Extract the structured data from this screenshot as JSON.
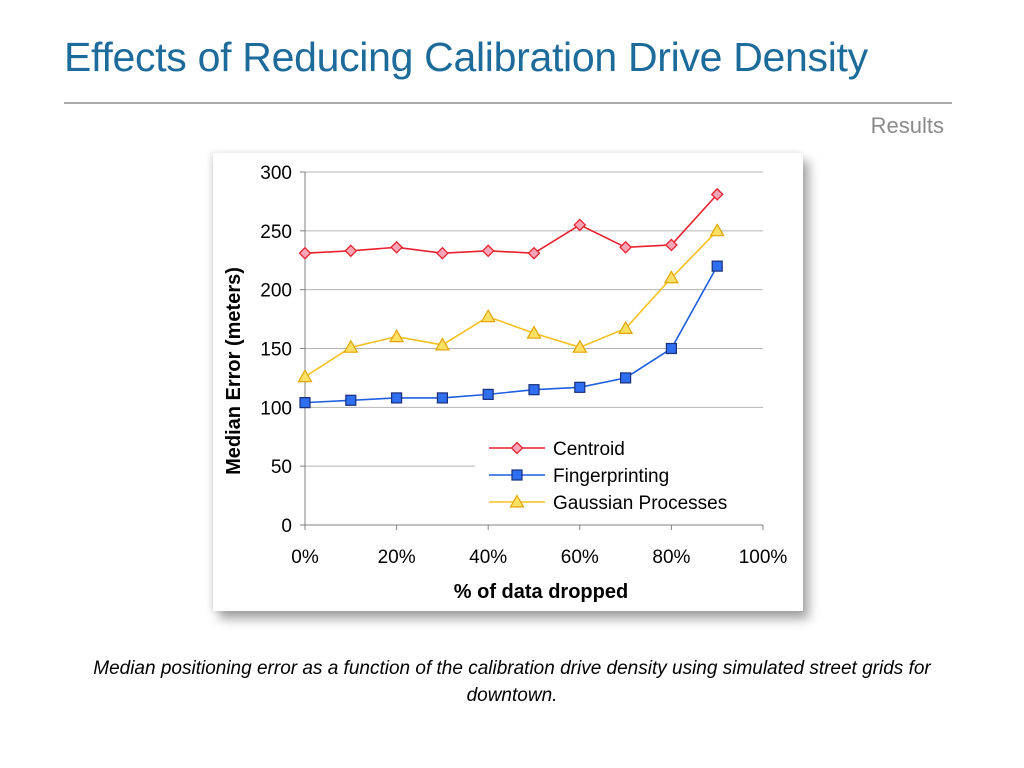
{
  "slide": {
    "title": "Effects of Reducing Calibration Drive Density",
    "subtitle": "Results",
    "caption": "Median positioning error as a function of the calibration drive density using simulated street grids for downtown."
  },
  "chart_data": {
    "type": "line",
    "xlabel": "% of data dropped",
    "ylabel": "Median Error (meters)",
    "xlim": [
      0,
      100
    ],
    "ylim": [
      0,
      300
    ],
    "xticks": [
      0,
      20,
      40,
      60,
      80,
      100
    ],
    "xtick_labels": [
      "0%",
      "20%",
      "40%",
      "60%",
      "80%",
      "100%"
    ],
    "yticks": [
      0,
      50,
      100,
      150,
      200,
      250,
      300
    ],
    "ytick_labels": [
      "0",
      "50",
      "100",
      "150",
      "200",
      "250",
      "300"
    ],
    "grid": "horizontal",
    "legend_position": "lower-right",
    "x": [
      0,
      10,
      20,
      30,
      40,
      50,
      60,
      70,
      80,
      90
    ],
    "series": [
      {
        "name": "Centroid",
        "color": "#e8212e",
        "marker": "diamond",
        "marker_fill": "#f7a6b8",
        "values": [
          231,
          233,
          236,
          231,
          233,
          231,
          255,
          236,
          238,
          281
        ]
      },
      {
        "name": "Fingerprinting",
        "color": "#1f5fe0",
        "marker": "square",
        "marker_fill": "#2d6ff0",
        "values": [
          104,
          106,
          108,
          108,
          111,
          115,
          117,
          125,
          150,
          220
        ]
      },
      {
        "name": "Gaussian Processes",
        "color": "#f5c01c",
        "marker": "triangle",
        "marker_fill": "#ffe066",
        "values": [
          126,
          151,
          160,
          153,
          177,
          163,
          151,
          167,
          210,
          250
        ]
      }
    ]
  }
}
